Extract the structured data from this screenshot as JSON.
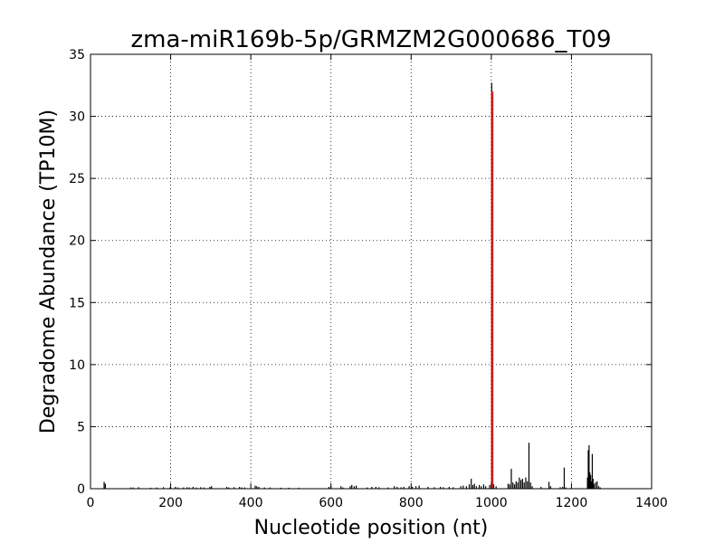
{
  "chart_data": {
    "type": "bar",
    "title": "zma-miR169b-5p/GRMZM2G000686_T09",
    "xlabel": "Nucleotide position (nt)",
    "ylabel": "Degradome Abundance (TP10M)",
    "xlim": [
      0,
      1400
    ],
    "ylim": [
      0,
      35
    ],
    "xticks": [
      0,
      200,
      400,
      600,
      800,
      1000,
      1200,
      1400
    ],
    "yticks": [
      0,
      5,
      10,
      15,
      20,
      25,
      30,
      35
    ],
    "grid": true,
    "colors": {
      "bars": "#000000",
      "highlight": "#ff0000"
    },
    "series": [
      {
        "values": [
          [
            34,
            0.55
          ],
          [
            37,
            0.4
          ],
          [
            100,
            0.1
          ],
          [
            106,
            0.1
          ],
          [
            120,
            0.12
          ],
          [
            150,
            0.08
          ],
          [
            165,
            0.1
          ],
          [
            182,
            0.12
          ],
          [
            198,
            0.1
          ],
          [
            212,
            0.15
          ],
          [
            218,
            0.1
          ],
          [
            232,
            0.1
          ],
          [
            241,
            0.12
          ],
          [
            247,
            0.1
          ],
          [
            256,
            0.15
          ],
          [
            264,
            0.1
          ],
          [
            275,
            0.12
          ],
          [
            283,
            0.1
          ],
          [
            298,
            0.15
          ],
          [
            302,
            0.2
          ],
          [
            340,
            0.15
          ],
          [
            345,
            0.1
          ],
          [
            358,
            0.12
          ],
          [
            372,
            0.15
          ],
          [
            378,
            0.1
          ],
          [
            385,
            0.1
          ],
          [
            411,
            0.25
          ],
          [
            415,
            0.2
          ],
          [
            420,
            0.15
          ],
          [
            434,
            0.1
          ],
          [
            448,
            0.1
          ],
          [
            475,
            0.08
          ],
          [
            495,
            0.08
          ],
          [
            520,
            0.08
          ],
          [
            595,
            0.15
          ],
          [
            600,
            0.2
          ],
          [
            625,
            0.2
          ],
          [
            630,
            0.1
          ],
          [
            648,
            0.2
          ],
          [
            652,
            0.3
          ],
          [
            658,
            0.2
          ],
          [
            663,
            0.25
          ],
          [
            690,
            0.1
          ],
          [
            702,
            0.15
          ],
          [
            712,
            0.15
          ],
          [
            720,
            0.12
          ],
          [
            742,
            0.1
          ],
          [
            758,
            0.2
          ],
          [
            765,
            0.15
          ],
          [
            775,
            0.12
          ],
          [
            782,
            0.15
          ],
          [
            795,
            0.2
          ],
          [
            803,
            0.15
          ],
          [
            812,
            0.2
          ],
          [
            820,
            0.25
          ],
          [
            842,
            0.15
          ],
          [
            858,
            0.12
          ],
          [
            873,
            0.15
          ],
          [
            880,
            0.12
          ],
          [
            895,
            0.15
          ],
          [
            905,
            0.12
          ],
          [
            924,
            0.2
          ],
          [
            930,
            0.25
          ],
          [
            938,
            0.2
          ],
          [
            945,
            0.35
          ],
          [
            950,
            0.8
          ],
          [
            954,
            0.3
          ],
          [
            958,
            0.4
          ],
          [
            963,
            0.2
          ],
          [
            970,
            0.3
          ],
          [
            975,
            0.2
          ],
          [
            981,
            0.35
          ],
          [
            986,
            0.2
          ],
          [
            996,
            0.3
          ],
          [
            1001,
            32.7
          ],
          [
            1006,
            0.35
          ],
          [
            1012,
            0.2
          ],
          [
            1042,
            0.4
          ],
          [
            1046,
            0.35
          ],
          [
            1050,
            1.6
          ],
          [
            1054,
            0.5
          ],
          [
            1058,
            0.35
          ],
          [
            1062,
            0.6
          ],
          [
            1066,
            0.5
          ],
          [
            1070,
            0.9
          ],
          [
            1074,
            0.7
          ],
          [
            1078,
            0.8
          ],
          [
            1082,
            0.5
          ],
          [
            1086,
            0.9
          ],
          [
            1090,
            0.6
          ],
          [
            1094,
            3.7
          ],
          [
            1098,
            0.5
          ],
          [
            1102,
            0.2
          ],
          [
            1124,
            0.15
          ],
          [
            1144,
            0.55
          ],
          [
            1148,
            0.2
          ],
          [
            1172,
            0.12
          ],
          [
            1178,
            0.15
          ],
          [
            1182,
            1.7
          ],
          [
            1186,
            0.1
          ],
          [
            1240,
            0.9
          ],
          [
            1242,
            3.1
          ],
          [
            1244,
            3.5
          ],
          [
            1246,
            1.3
          ],
          [
            1248,
            1.1
          ],
          [
            1250,
            0.6
          ],
          [
            1252,
            2.8
          ],
          [
            1254,
            0.8
          ],
          [
            1256,
            0.4
          ],
          [
            1260,
            0.5
          ],
          [
            1264,
            0.6
          ],
          [
            1268,
            0.2
          ],
          [
            1272,
            0.1
          ]
        ]
      }
    ],
    "annotations": [
      {
        "x": 1003,
        "y": 32.0,
        "color": "#ff0000"
      }
    ]
  }
}
